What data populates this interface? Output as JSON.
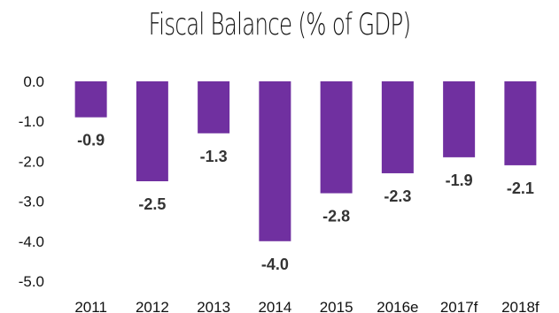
{
  "chart_data": {
    "type": "bar",
    "title": "Fiscal Balance (% of GDP)",
    "xlabel": "",
    "ylabel": "",
    "categories": [
      "2011",
      "2012",
      "2013",
      "2014",
      "2015",
      "2016e",
      "2017f",
      "2018f"
    ],
    "values": [
      -0.9,
      -2.5,
      -1.3,
      -4.0,
      -2.8,
      -2.3,
      -1.9,
      -2.1
    ],
    "value_labels": [
      "-0.9",
      "-2.5",
      "-1.3",
      "-4.0",
      "-2.8",
      "-2.3",
      "-1.9",
      "-2.1"
    ],
    "ylim": [
      -5.0,
      0.0
    ],
    "yticks": [
      "0.0",
      "-1.0",
      "-2.0",
      "-3.0",
      "-4.0",
      "-5.0"
    ],
    "grid": false,
    "legend": "none",
    "bar_color": "#7030A0"
  }
}
